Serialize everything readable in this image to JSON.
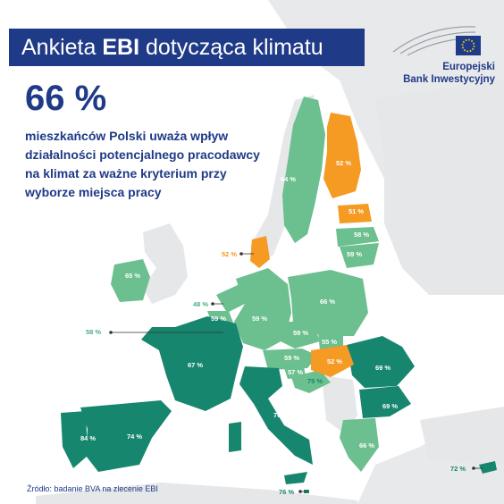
{
  "header": {
    "title_prefix": "Ankieta ",
    "title_bold": "EBI",
    "title_suffix": " dotycząca klimatu"
  },
  "logo": {
    "line1": "Europejski",
    "line2": "Bank Inwestycyjny"
  },
  "stat": {
    "value": "66 %",
    "desc": "mieszkańców Polski uważa wpływ działalności potencjalnego pracodawcy na klimat za ważne kryterium przy wyborze miejsca pracy"
  },
  "labels": {
    "finland": "52 %",
    "sweden": "64 %",
    "estonia": "51 %",
    "latvia": "58 %",
    "lithuania": "59 %",
    "denmark": "52 %",
    "ireland": "65 %",
    "netherlands": "48 %",
    "belgium": "59 %",
    "luxembourg": "58 %",
    "germany": "59 %",
    "poland": "66 %",
    "czechia": "59 %",
    "slovakia": "55 %",
    "austria": "59 %",
    "hungary": "52 %",
    "slovenia": "57 %",
    "croatia": "75 %",
    "france": "67 %",
    "romania": "69 %",
    "bulgaria": "69 %",
    "italy": "76 %",
    "greece": "66 %",
    "spain": "74 %",
    "portugal": "84 %",
    "malta": "76 %",
    "cyprus": "72 %"
  },
  "source": "Źródło: badanie BVA na zlecenie EBI",
  "colors": {
    "dark_teal": "#17866e",
    "light_green": "#6cbf8e",
    "orange": "#f59a23",
    "navy": "#1f3a87",
    "background_land": "#e8e9eb"
  }
}
